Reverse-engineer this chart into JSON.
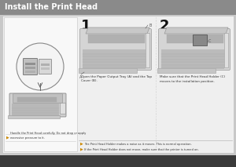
{
  "title": "Install the Print Head",
  "title_bg": "#8a8a8a",
  "title_color": "#ffffff",
  "title_fontsize": 7.0,
  "page_bg": "#c8c8c8",
  "content_bg": "#f0f0f0",
  "step1_num": "1",
  "step2_num": "2",
  "step1_text": "Open the Paper Output Tray (A) and the Top\nCover (B).",
  "step2_text": "Make sure that the Print Head Holder (C)\nmoves to the installation position.",
  "left_note": "Handle the Print Head carefully. Do not drop or apply\nexcessive pressure to it.",
  "bullet1": "The Print Head Holder makes a noise as it moves. This is normal operation.",
  "bullet2": "If the Print Head Holder does not move, make sure that the printer is turned on.",
  "bottom_bar_color": "#3a3a3a",
  "border_color": "#bbbbbb",
  "divider_color": "#aaaaaa",
  "content_area_bg": "#efefef",
  "left_panel_bg": "#f8f8f8",
  "step_area_bg": "#f8f8f8"
}
